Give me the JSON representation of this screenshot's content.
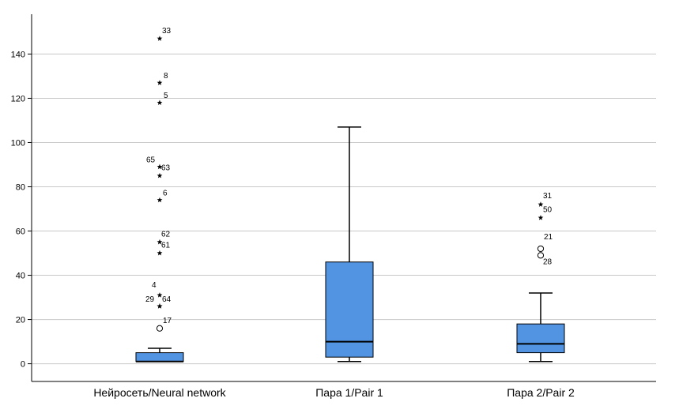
{
  "chart_data": {
    "type": "box",
    "title": "",
    "xlabel": "",
    "ylabel": "",
    "ylim": [
      -8,
      158
    ],
    "yticks": [
      0,
      20,
      40,
      60,
      80,
      100,
      120,
      140
    ],
    "grid": "horizontal",
    "box_color": "#5294e2",
    "categories": [
      "Нейросеть/Neural network",
      "Пара 1/Pair 1",
      "Пара 2/Pair 2"
    ],
    "boxes": [
      {
        "category": "Нейросеть/Neural network",
        "whisker_low": 1,
        "q1": 1,
        "median": 1,
        "q3": 5,
        "whisker_high": 7,
        "outliers": [
          {
            "value": 16,
            "label": "17",
            "marker": "circle"
          },
          {
            "value": 26,
            "label": "64",
            "marker": "star"
          },
          {
            "value": 26,
            "label": "29",
            "marker": "star"
          },
          {
            "value": 31,
            "label": "4",
            "marker": "star"
          },
          {
            "value": 50,
            "label": "61",
            "marker": "star"
          },
          {
            "value": 55,
            "label": "62",
            "marker": "star"
          },
          {
            "value": 74,
            "label": "6",
            "marker": "star"
          },
          {
            "value": 85,
            "label": "63",
            "marker": "star"
          },
          {
            "value": 89,
            "label": "65",
            "marker": "star"
          },
          {
            "value": 118,
            "label": "5",
            "marker": "star"
          },
          {
            "value": 127,
            "label": "8",
            "marker": "star"
          },
          {
            "value": 147,
            "label": "33",
            "marker": "star"
          }
        ]
      },
      {
        "category": "Пара 1/Pair 1",
        "whisker_low": 1,
        "q1": 3,
        "median": 10,
        "q3": 46,
        "whisker_high": 107,
        "outliers": []
      },
      {
        "category": "Пара 2/Pair 2",
        "whisker_low": 1,
        "q1": 5,
        "median": 9,
        "q3": 18,
        "whisker_high": 32,
        "outliers": [
          {
            "value": 49,
            "label": "28",
            "marker": "circle"
          },
          {
            "value": 52,
            "label": "21",
            "marker": "circle"
          },
          {
            "value": 66,
            "label": "50",
            "marker": "star"
          },
          {
            "value": 72,
            "label": "31",
            "marker": "star"
          }
        ]
      }
    ]
  }
}
